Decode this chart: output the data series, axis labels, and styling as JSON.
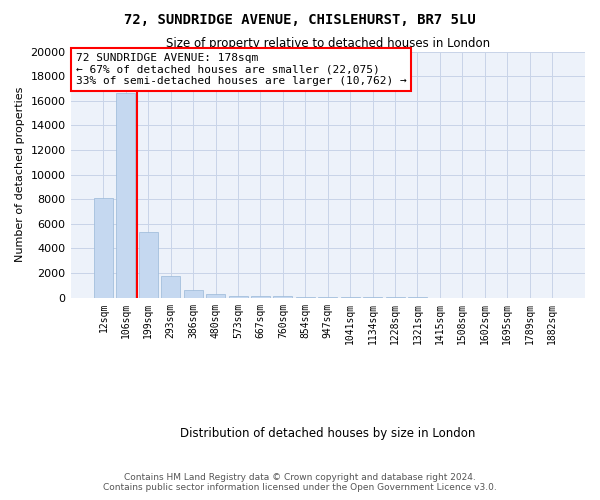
{
  "title": "72, SUNDRIDGE AVENUE, CHISLEHURST, BR7 5LU",
  "subtitle": "Size of property relative to detached houses in London",
  "xlabel": "Distribution of detached houses by size in London",
  "ylabel": "Number of detached properties",
  "bar_color": "#c5d8f0",
  "bar_edge_color": "#9ab8d8",
  "property_line_color": "red",
  "property_size": 178,
  "annotation_title": "72 SUNDRIDGE AVENUE: 178sqm",
  "annotation_line1": "← 67% of detached houses are smaller (22,075)",
  "annotation_line2": "33% of semi-detached houses are larger (10,762) →",
  "categories": [
    "12sqm",
    "106sqm",
    "199sqm",
    "293sqm",
    "386sqm",
    "480sqm",
    "573sqm",
    "667sqm",
    "760sqm",
    "854sqm",
    "947sqm",
    "1041sqm",
    "1134sqm",
    "1228sqm",
    "1321sqm",
    "1415sqm",
    "1508sqm",
    "1602sqm",
    "1695sqm",
    "1789sqm",
    "1882sqm"
  ],
  "values": [
    8100,
    16600,
    5300,
    1800,
    600,
    300,
    150,
    100,
    100,
    60,
    50,
    50,
    40,
    30,
    20,
    10,
    10,
    8,
    5,
    3,
    2
  ],
  "ylim": [
    0,
    20000
  ],
  "yticks": [
    0,
    2000,
    4000,
    6000,
    8000,
    10000,
    12000,
    14000,
    16000,
    18000,
    20000
  ],
  "footer1": "Contains HM Land Registry data © Crown copyright and database right 2024.",
  "footer2": "Contains public sector information licensed under the Open Government Licence v3.0.",
  "bg_color": "#edf2fa",
  "grid_color": "#c8d4e8",
  "title_fontsize": 10,
  "subtitle_fontsize": 8.5,
  "tick_fontsize": 7,
  "ylabel_fontsize": 8,
  "xlabel_fontsize": 8.5,
  "footer_fontsize": 6.5
}
